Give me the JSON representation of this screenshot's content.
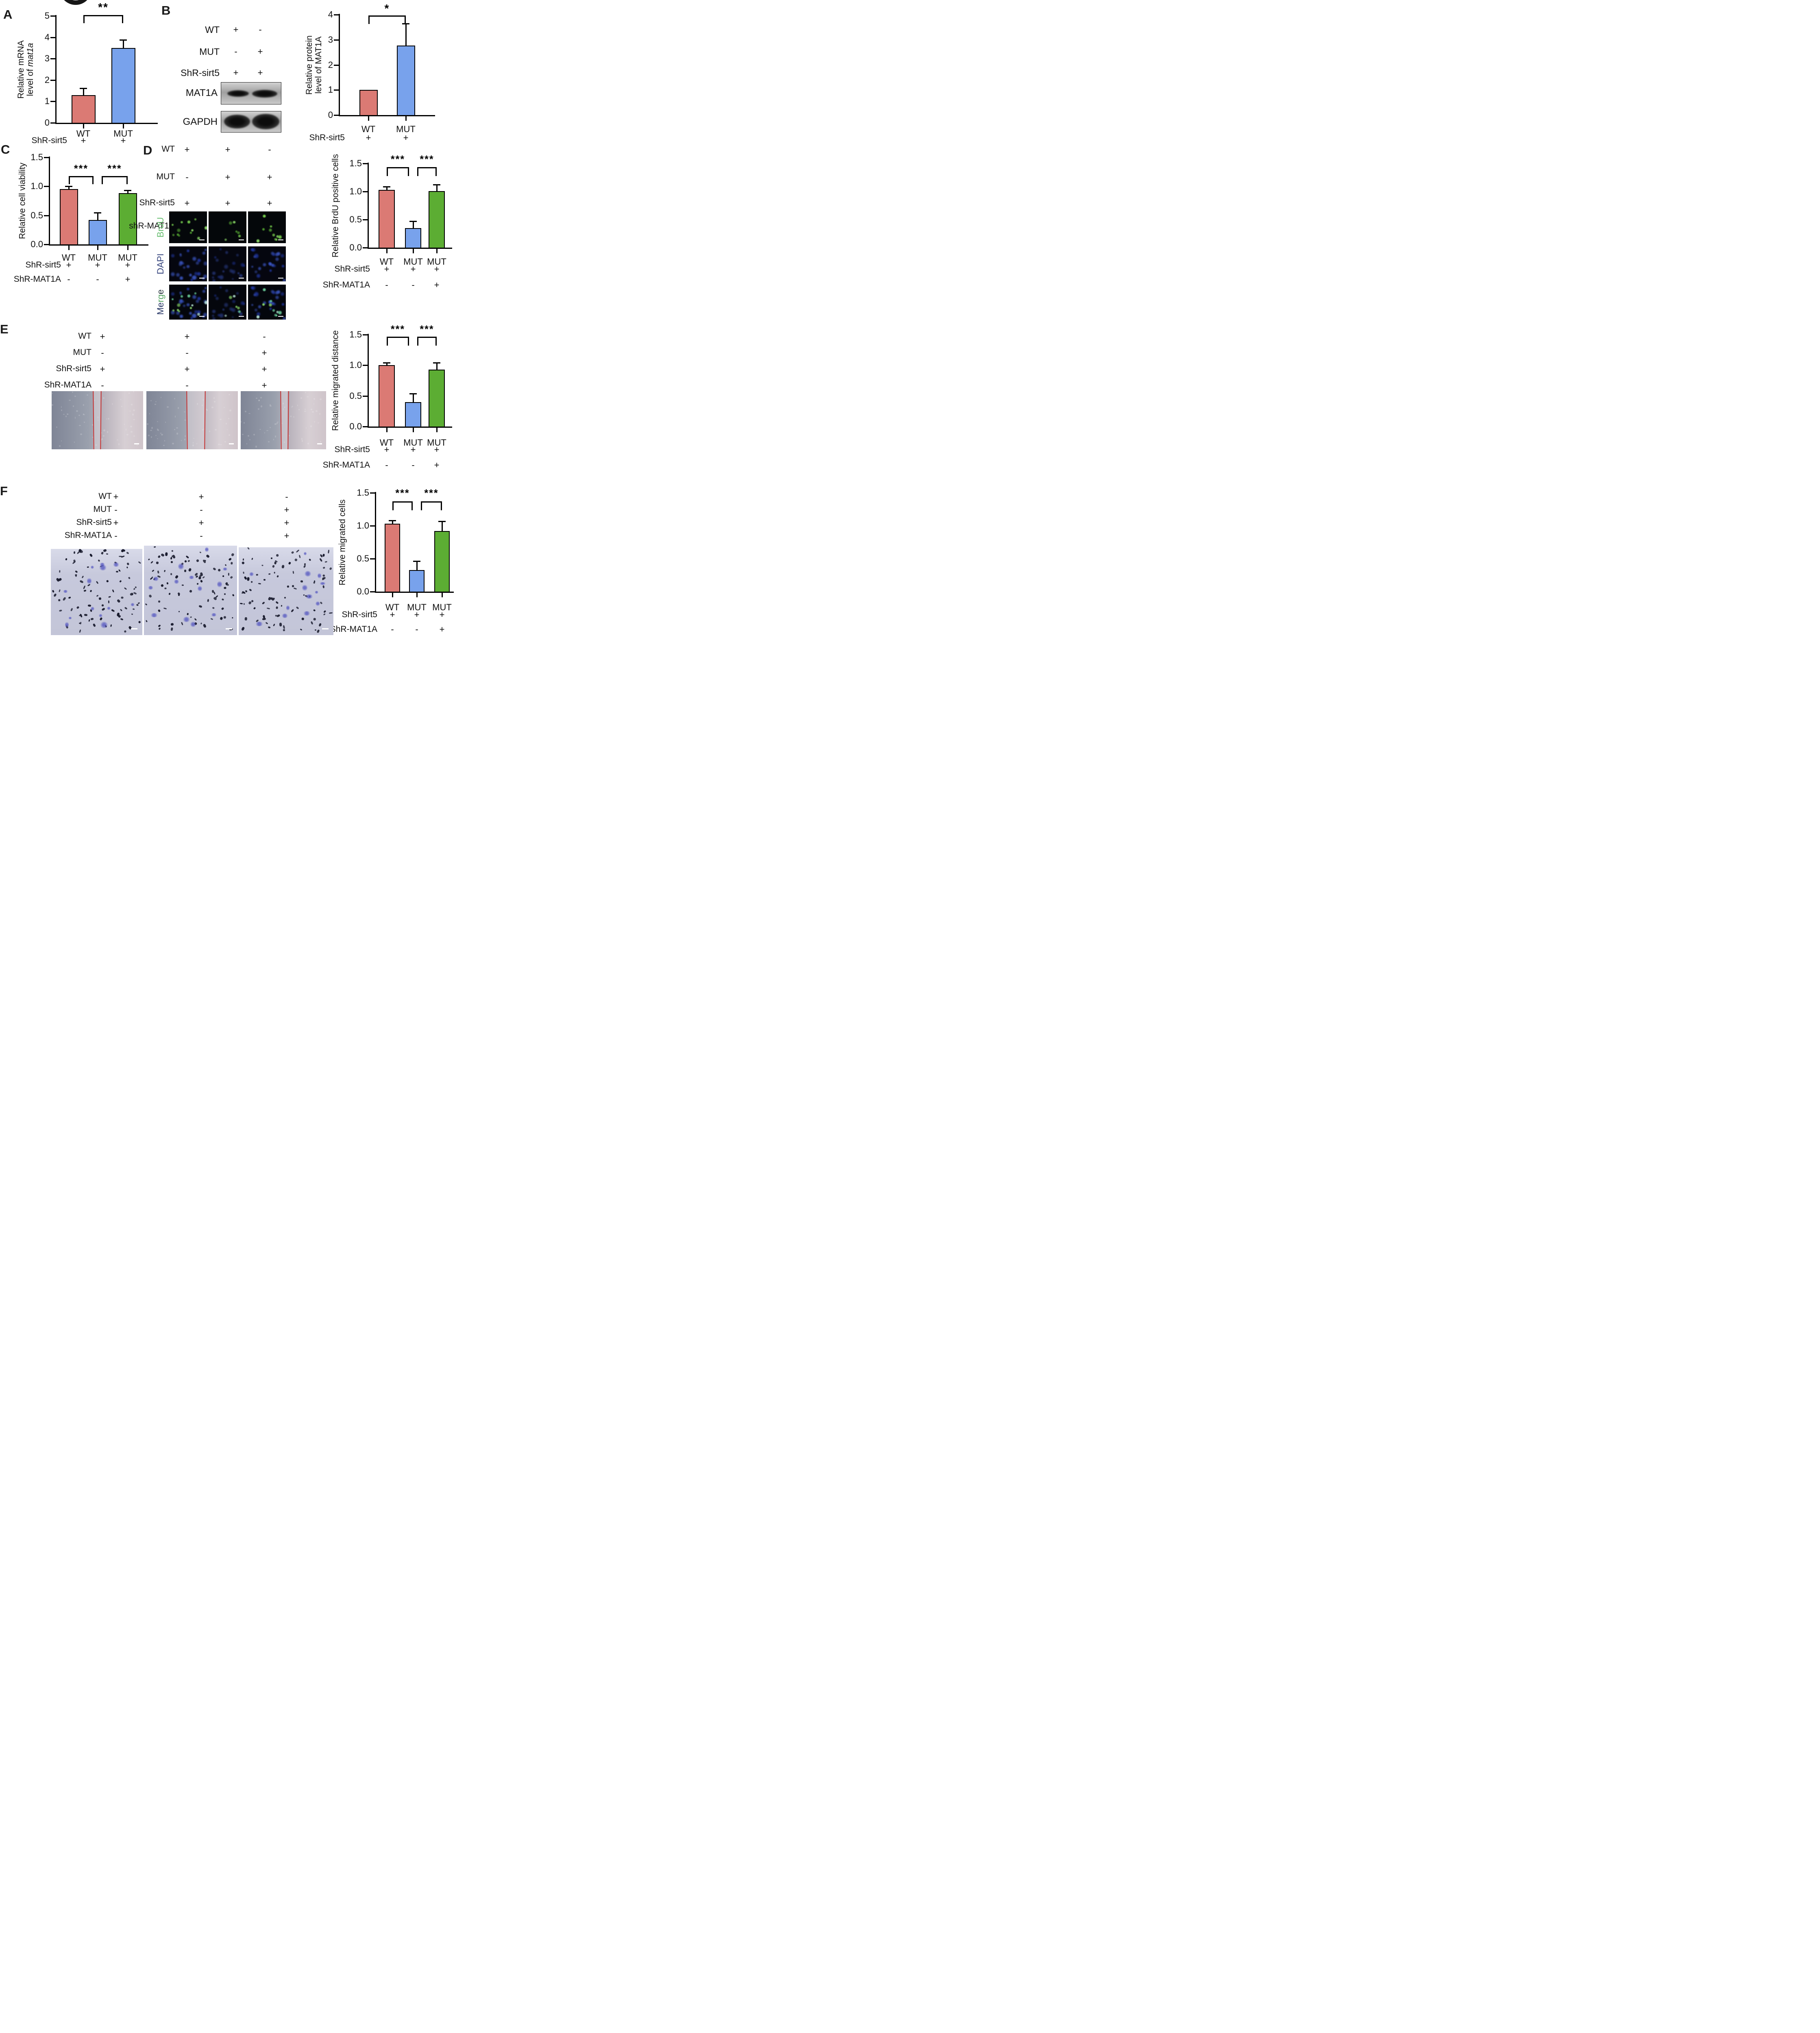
{
  "panels": {
    "A": "A",
    "B": "B",
    "C": "C",
    "D": "D",
    "E": "E",
    "F": "F"
  },
  "symbols": {
    "plus": "+",
    "minus": "-"
  },
  "colors": {
    "bar_red": "#DB7A74",
    "bar_blue": "#78A2EC",
    "bar_green": "#5CAD33",
    "brdu_label": "#69BE71",
    "dapi_label": "#36457E",
    "wound_line": "#C53030",
    "axis": "#000000"
  },
  "chart_data": [
    {
      "id": "A",
      "type": "bar",
      "ylabel_lines": [
        "Relative mRNA",
        "level of mat1a"
      ],
      "ylabel_italic": "mat1a",
      "categories": [
        "WT",
        "MUT"
      ],
      "values": [
        1.3,
        3.5
      ],
      "errors": [
        0.32,
        0.37
      ],
      "bar_colors": [
        "#DB7A74",
        "#78A2EC"
      ],
      "ylim": [
        0,
        5
      ],
      "yticks": [
        "0",
        "1",
        "2",
        "3",
        "4",
        "5"
      ],
      "grid": false,
      "legend": "none",
      "significance": [
        {
          "from": 0,
          "to": 1,
          "label": "**"
        }
      ],
      "conditions": [
        {
          "label": "ShR-sirt5",
          "values": [
            "+",
            "+"
          ]
        }
      ]
    },
    {
      "id": "B",
      "type": "bar",
      "ylabel_lines": [
        "Relative protein",
        "level of MAT1A"
      ],
      "categories": [
        "WT",
        "MUT"
      ],
      "values": [
        1.0,
        2.77
      ],
      "errors": [
        null,
        0.88
      ],
      "bar_colors": [
        "#DB7A74",
        "#78A2EC"
      ],
      "ylim": [
        0,
        4
      ],
      "yticks": [
        "0",
        "1",
        "2",
        "3",
        "4"
      ],
      "grid": false,
      "legend": "none",
      "significance": [
        {
          "from": 0,
          "to": 1,
          "label": "*"
        }
      ],
      "conditions": [
        {
          "label": "ShR-sirt5",
          "values": [
            "+",
            "+"
          ]
        }
      ]
    },
    {
      "id": "C",
      "type": "bar",
      "ylabel_lines": [
        "Relative cell viability"
      ],
      "categories": [
        "WT",
        "MUT",
        "MUT"
      ],
      "values": [
        0.95,
        0.42,
        0.88
      ],
      "errors": [
        0.05,
        0.13,
        0.05
      ],
      "bar_colors": [
        "#DB7A74",
        "#78A2EC",
        "#5CAD33"
      ],
      "ylim": [
        0,
        1.5
      ],
      "yticks": [
        "0.0",
        "0.5",
        "1.0",
        "1.5"
      ],
      "grid": false,
      "legend": "none",
      "significance": [
        {
          "from": 0,
          "to": 1,
          "label": "***"
        },
        {
          "from": 1,
          "to": 2,
          "label": "***"
        }
      ],
      "conditions": [
        {
          "label": "ShR-sirt5",
          "values": [
            "+",
            "+",
            "+"
          ]
        },
        {
          "label": "ShR-MAT1A",
          "values": [
            "-",
            "-",
            "+"
          ]
        }
      ]
    },
    {
      "id": "D",
      "type": "bar",
      "ylabel_lines": [
        "Relative BrdU positive cells"
      ],
      "categories": [
        "WT",
        "MUT",
        "MUT"
      ],
      "values": [
        1.03,
        0.35,
        1.01
      ],
      "errors": [
        0.06,
        0.12,
        0.11
      ],
      "bar_colors": [
        "#DB7A74",
        "#78A2EC",
        "#5CAD33"
      ],
      "ylim": [
        0,
        1.5
      ],
      "yticks": [
        "0.0",
        "0.5",
        "1.0",
        "1.5"
      ],
      "grid": false,
      "legend": "none",
      "significance": [
        {
          "from": 0,
          "to": 1,
          "label": "***"
        },
        {
          "from": 1,
          "to": 2,
          "label": "***"
        }
      ],
      "conditions": [
        {
          "label": "ShR-sirt5",
          "values": [
            "+",
            "+",
            "+"
          ]
        },
        {
          "label": "ShR-MAT1A",
          "values": [
            "-",
            "-",
            "+"
          ]
        }
      ]
    },
    {
      "id": "E",
      "type": "bar",
      "ylabel_lines": [
        "Relative migrated distance"
      ],
      "categories": [
        "WT",
        "MUT",
        "MUT"
      ],
      "values": [
        1.0,
        0.4,
        0.93
      ],
      "errors": [
        0.04,
        0.14,
        0.11
      ],
      "bar_colors": [
        "#DB7A74",
        "#78A2EC",
        "#5CAD33"
      ],
      "ylim": [
        0,
        1.5
      ],
      "yticks": [
        "0.0",
        "0.5",
        "1.0",
        "1.5"
      ],
      "grid": false,
      "legend": "none",
      "significance": [
        {
          "from": 0,
          "to": 1,
          "label": "***"
        },
        {
          "from": 1,
          "to": 2,
          "label": "***"
        }
      ],
      "conditions": [
        {
          "label": "ShR-sirt5",
          "values": [
            "+",
            "+",
            "+"
          ]
        },
        {
          "label": "ShR-MAT1A",
          "values": [
            "-",
            "-",
            "+"
          ]
        }
      ]
    },
    {
      "id": "F",
      "type": "bar",
      "ylabel_lines": [
        "Relative migrated cells"
      ],
      "categories": [
        "WT",
        "MUT",
        "MUT"
      ],
      "values": [
        1.03,
        0.33,
        0.92
      ],
      "errors": [
        0.05,
        0.13,
        0.15
      ],
      "bar_colors": [
        "#DB7A74",
        "#78A2EC",
        "#5CAD33"
      ],
      "ylim": [
        0,
        1.5
      ],
      "yticks": [
        "0.0",
        "0.5",
        "1.0",
        "1.5"
      ],
      "grid": false,
      "legend": "none",
      "significance": [
        {
          "from": 0,
          "to": 1,
          "label": "***"
        },
        {
          "from": 1,
          "to": 2,
          "label": "***"
        }
      ],
      "conditions": [
        {
          "label": "ShR-sirt5",
          "values": [
            "+",
            "+",
            "+"
          ]
        },
        {
          "label": "ShR-MAT1A",
          "values": [
            "-",
            "-",
            "+"
          ]
        }
      ]
    }
  ],
  "panelB": {
    "table": {
      "rows": [
        {
          "label": "WT",
          "values": [
            "+",
            "-"
          ]
        },
        {
          "label": "MUT",
          "values": [
            "-",
            "+"
          ]
        },
        {
          "label": "ShR-sirt5",
          "values": [
            "+",
            "+"
          ]
        }
      ]
    },
    "blots": [
      {
        "label": "MAT1A"
      },
      {
        "label": "GAPDH"
      }
    ]
  },
  "panelD": {
    "table": {
      "rows": [
        {
          "label": "WT",
          "values": [
            "+",
            "+",
            "-"
          ]
        },
        {
          "label": "MUT",
          "values": [
            "-",
            "+",
            "+"
          ]
        },
        {
          "label": "ShR-sirt5",
          "values": [
            "+",
            "+",
            "+"
          ]
        },
        {
          "label": "shR-MAT1A",
          "values": [
            "-",
            "-",
            "+"
          ]
        }
      ]
    },
    "image_rows": [
      {
        "label": "BrdU",
        "color": "#69BE71"
      },
      {
        "label": "DAPI",
        "color": "#36457E"
      },
      {
        "label": "Merge",
        "char_colors": [
          "#2B3A68",
          "#2B3A68",
          "#57A664",
          "#57A664",
          "#2F3A44"
        ]
      }
    ]
  },
  "panelE": {
    "table": {
      "rows": [
        {
          "label": "WT",
          "values": [
            "+",
            "+",
            "-"
          ]
        },
        {
          "label": "MUT",
          "values": [
            "-",
            "-",
            "+"
          ]
        },
        {
          "label": "ShR-sirt5",
          "values": [
            "+",
            "+",
            "+"
          ]
        },
        {
          "label": "ShR-MAT1A",
          "values": [
            "-",
            "-",
            "+"
          ]
        }
      ]
    }
  },
  "panelF": {
    "table": {
      "rows": [
        {
          "label": "WT",
          "values": [
            "+",
            "+",
            "-"
          ]
        },
        {
          "label": "MUT",
          "values": [
            "-",
            "-",
            "+"
          ]
        },
        {
          "label": "ShR-sirt5",
          "values": [
            "+",
            "+",
            "+"
          ]
        },
        {
          "label": "ShR-MAT1A",
          "values": [
            "-",
            "-",
            "+"
          ]
        }
      ]
    }
  }
}
